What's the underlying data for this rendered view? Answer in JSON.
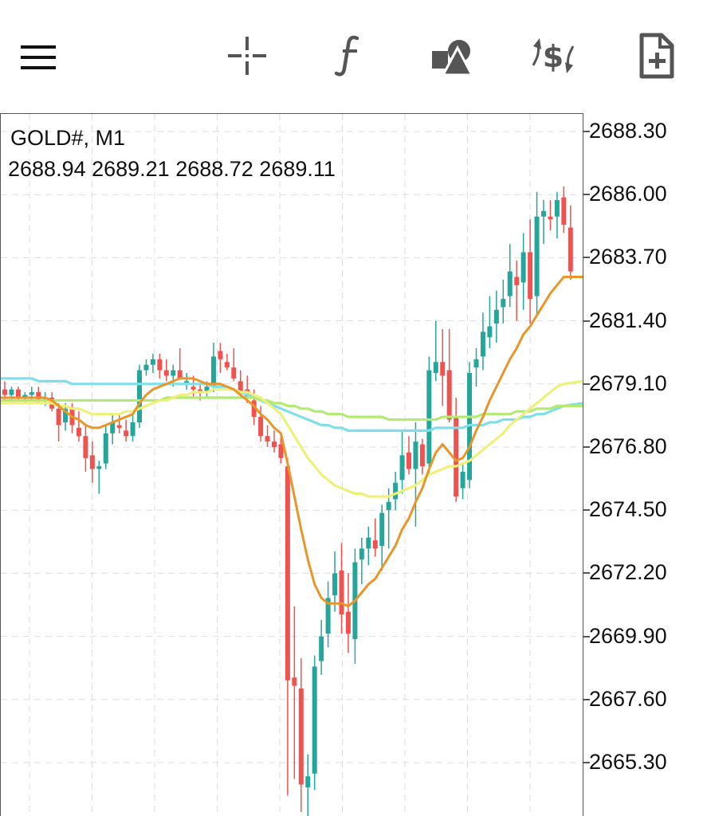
{
  "toolbar": {
    "icons": [
      "menu-icon",
      "crosshair-icon",
      "function-icon",
      "objects-icon",
      "trade-icon",
      "new-order-icon"
    ]
  },
  "chart": {
    "symbol": "GOLD#, M1",
    "ohlc": "2688.94 2689.21 2688.72 2689.11",
    "price_labels": [
      "2688.30",
      "2686.00",
      "2683.70",
      "2681.40",
      "2679.10",
      "2676.80",
      "2674.50",
      "2672.20",
      "2669.90",
      "2667.60",
      "2665.30"
    ],
    "colors": {
      "bull": "#26a69a",
      "bear": "#ef5350",
      "ma_orange": "#e8962a",
      "ma_yellow": "#eef07a",
      "ma_green": "#b4ea74",
      "ma_cyan": "#7fdfe8",
      "grid": "#dddddd"
    }
  },
  "chart_data": {
    "type": "candlestick",
    "symbol": "GOLD#",
    "timeframe": "M1",
    "ylim": [
      2663.0,
      2689.5
    ],
    "grid": true,
    "candles": [
      [
        2678.9,
        2679.2,
        2678.5,
        2678.7
      ],
      [
        2678.7,
        2679.0,
        2678.4,
        2678.9
      ],
      [
        2678.9,
        2679.0,
        2678.5,
        2678.6
      ],
      [
        2678.6,
        2678.8,
        2678.4,
        2678.7
      ],
      [
        2678.7,
        2679.0,
        2678.5,
        2678.8
      ],
      [
        2678.8,
        2679.0,
        2678.4,
        2678.5
      ],
      [
        2678.5,
        2678.8,
        2678.3,
        2678.6
      ],
      [
        2678.6,
        2678.8,
        2678.1,
        2678.2
      ],
      [
        2678.2,
        2678.4,
        2677.0,
        2677.6
      ],
      [
        2677.7,
        2678.4,
        2677.4,
        2678.2
      ],
      [
        2678.2,
        2678.4,
        2677.3,
        2677.6
      ],
      [
        2677.5,
        2678.1,
        2677.0,
        2677.2
      ],
      [
        2677.2,
        2677.6,
        2675.9,
        2676.4
      ],
      [
        2676.5,
        2677.0,
        2675.5,
        2676.0
      ],
      [
        2676.0,
        2676.3,
        2675.1,
        2676.1
      ],
      [
        2676.2,
        2677.6,
        2676.0,
        2677.3
      ],
      [
        2677.3,
        2678.0,
        2676.9,
        2677.7
      ],
      [
        2677.6,
        2678.0,
        2677.3,
        2677.5
      ],
      [
        2677.4,
        2677.8,
        2677.0,
        2677.2
      ],
      [
        2677.2,
        2678.0,
        2677.0,
        2677.7
      ],
      [
        2677.7,
        2679.8,
        2677.5,
        2679.6
      ],
      [
        2679.6,
        2680.0,
        2679.4,
        2679.8
      ],
      [
        2679.8,
        2680.2,
        2679.5,
        2680.0
      ],
      [
        2680.0,
        2680.2,
        2679.3,
        2679.6
      ],
      [
        2679.6,
        2680.0,
        2679.2,
        2679.4
      ],
      [
        2679.4,
        2679.8,
        2679.0,
        2679.6
      ],
      [
        2679.6,
        2680.4,
        2679.3,
        2679.3
      ],
      [
        2679.2,
        2679.5,
        2678.9,
        2679.2
      ],
      [
        2679.0,
        2679.4,
        2678.6,
        2678.9
      ],
      [
        2678.9,
        2679.1,
        2678.5,
        2678.8
      ],
      [
        2678.8,
        2679.2,
        2678.6,
        2679.0
      ],
      [
        2679.0,
        2680.6,
        2678.8,
        2680.1
      ],
      [
        2680.3,
        2680.6,
        2679.5,
        2680.0
      ],
      [
        2679.9,
        2680.2,
        2679.6,
        2679.7
      ],
      [
        2679.7,
        2680.4,
        2679.2,
        2679.3
      ],
      [
        2679.2,
        2679.6,
        2678.6,
        2678.8
      ],
      [
        2678.9,
        2679.4,
        2678.4,
        2678.6
      ],
      [
        2678.5,
        2678.9,
        2677.6,
        2677.9
      ],
      [
        2677.9,
        2678.3,
        2677.0,
        2677.2
      ],
      [
        2677.2,
        2677.6,
        2676.8,
        2677.0
      ],
      [
        2677.0,
        2677.4,
        2676.6,
        2676.8
      ],
      [
        2676.9,
        2677.3,
        2676.2,
        2676.4
      ],
      [
        2676.1,
        2676.4,
        2664.1,
        2668.3
      ],
      [
        2668.4,
        2671.0,
        2664.7,
        2668.1
      ],
      [
        2668.0,
        2669.1,
        2663.5,
        2664.5
      ],
      [
        2664.4,
        2665.6,
        2663.3,
        2664.8
      ],
      [
        2664.9,
        2669.2,
        2664.3,
        2668.8
      ],
      [
        2669.0,
        2670.5,
        2668.5,
        2669.9
      ],
      [
        2670.0,
        2671.9,
        2669.5,
        2671.3
      ],
      [
        2671.4,
        2673.0,
        2670.8,
        2672.2
      ],
      [
        2672.3,
        2673.3,
        2670.0,
        2670.7
      ],
      [
        2670.8,
        2672.2,
        2669.3,
        2670.0
      ],
      [
        2669.8,
        2673.1,
        2668.9,
        2672.6
      ],
      [
        2672.7,
        2673.5,
        2671.8,
        2673.1
      ],
      [
        2673.1,
        2673.9,
        2672.5,
        2673.5
      ],
      [
        2673.4,
        2674.2,
        2672.8,
        2673.1
      ],
      [
        2673.2,
        2674.7,
        2672.3,
        2674.4
      ],
      [
        2674.5,
        2675.3,
        2673.1,
        2674.8
      ],
      [
        2674.9,
        2675.9,
        2674.5,
        2675.5
      ],
      [
        2675.6,
        2677.4,
        2675.1,
        2676.5
      ],
      [
        2676.6,
        2677.2,
        2675.8,
        2676.0
      ],
      [
        2676.0,
        2677.7,
        2673.9,
        2677.0
      ],
      [
        2676.9,
        2677.1,
        2675.8,
        2676.1
      ],
      [
        2676.2,
        2680.1,
        2675.8,
        2679.6
      ],
      [
        2679.5,
        2681.4,
        2679.2,
        2679.9
      ],
      [
        2679.9,
        2681.1,
        2678.3,
        2679.4
      ],
      [
        2679.6,
        2681.1,
        2677.7,
        2677.8
      ],
      [
        2677.9,
        2678.6,
        2674.8,
        2675.0
      ],
      [
        2675.3,
        2676.2,
        2674.9,
        2675.9
      ],
      [
        2675.6,
        2679.9,
        2675.3,
        2679.5
      ],
      [
        2679.7,
        2680.4,
        2679.0,
        2680.0
      ],
      [
        2680.1,
        2681.7,
        2679.6,
        2681.0
      ],
      [
        2680.8,
        2682.3,
        2680.4,
        2681.2
      ],
      [
        2681.3,
        2682.5,
        2680.6,
        2681.8
      ],
      [
        2681.9,
        2682.9,
        2681.3,
        2682.2
      ],
      [
        2682.3,
        2684.2,
        2681.9,
        2683.2
      ],
      [
        2683.0,
        2683.6,
        2681.4,
        2682.7
      ],
      [
        2682.8,
        2684.6,
        2681.8,
        2683.9
      ],
      [
        2683.9,
        2685.1,
        2681.3,
        2682.2
      ],
      [
        2682.3,
        2686.1,
        2681.6,
        2685.2
      ],
      [
        2685.2,
        2685.8,
        2684.2,
        2685.4
      ],
      [
        2685.2,
        2685.8,
        2684.7,
        2685.1
      ],
      [
        2685.2,
        2686.1,
        2684.4,
        2685.8
      ],
      [
        2685.9,
        2686.3,
        2684.6,
        2684.9
      ],
      [
        2684.8,
        2685.6,
        2682.9,
        2683.2
      ]
    ],
    "moving_averages": [
      {
        "color": "orange",
        "values": [
          2678.6,
          2678.6,
          2678.6,
          2678.6,
          2678.6,
          2678.6,
          2678.6,
          2678.5,
          2678.3,
          2678.1,
          2677.9,
          2677.8,
          2677.6,
          2677.5,
          2677.5,
          2677.6,
          2677.7,
          2677.8,
          2677.9,
          2678.0,
          2678.4,
          2678.7,
          2678.9,
          2679.0,
          2679.1,
          2679.2,
          2679.3,
          2679.3,
          2679.3,
          2679.2,
          2679.1,
          2679.1,
          2679.1,
          2679.0,
          2678.9,
          2678.7,
          2678.5,
          2678.3,
          2678.0,
          2677.8,
          2677.5,
          2677.3,
          2676.2,
          2675.0,
          2673.8,
          2672.7,
          2671.8,
          2671.3,
          2671.1,
          2671.1,
          2671.1,
          2671.0,
          2671.2,
          2671.5,
          2671.8,
          2672.0,
          2672.4,
          2672.8,
          2673.2,
          2673.8,
          2674.2,
          2674.8,
          2675.3,
          2676.0,
          2676.6,
          2676.9,
          2676.6,
          2676.3,
          2676.4,
          2676.8,
          2677.4,
          2677.9,
          2678.5,
          2679.0,
          2679.5,
          2680.0,
          2680.4,
          2680.9,
          2681.2,
          2681.6,
          2682.0,
          2682.4,
          2682.7,
          2683.0,
          2683.0
        ]
      },
      {
        "color": "yellow",
        "values": [
          2678.4,
          2678.4,
          2678.4,
          2678.4,
          2678.4,
          2678.4,
          2678.4,
          2678.4,
          2678.3,
          2678.3,
          2678.2,
          2678.2,
          2678.1,
          2678.0,
          2678.0,
          2678.0,
          2678.0,
          2678.0,
          2678.1,
          2678.1,
          2678.2,
          2678.3,
          2678.4,
          2678.5,
          2678.5,
          2678.6,
          2678.7,
          2678.7,
          2678.8,
          2678.8,
          2678.8,
          2678.9,
          2678.9,
          2678.9,
          2678.9,
          2678.8,
          2678.8,
          2678.7,
          2678.6,
          2678.4,
          2678.2,
          2678.0,
          2677.6,
          2677.2,
          2676.8,
          2676.4,
          2676.1,
          2675.8,
          2675.6,
          2675.4,
          2675.3,
          2675.2,
          2675.1,
          2675.1,
          2675.0,
          2675.0,
          2675.0,
          2675.0,
          2675.1,
          2675.2,
          2675.3,
          2675.4,
          2675.6,
          2675.8,
          2675.9,
          2676.0,
          2676.1,
          2676.1,
          2676.2,
          2676.3,
          2676.5,
          2676.7,
          2676.9,
          2677.1,
          2677.3,
          2677.6,
          2677.8,
          2678.0,
          2678.2,
          2678.4,
          2678.6,
          2678.8,
          2679.0,
          2679.1,
          2679.2
        ]
      },
      {
        "color": "green",
        "values": [
          2678.5,
          2678.5,
          2678.5,
          2678.5,
          2678.5,
          2678.5,
          2678.5,
          2678.5,
          2678.5,
          2678.5,
          2678.5,
          2678.5,
          2678.5,
          2678.5,
          2678.5,
          2678.5,
          2678.5,
          2678.5,
          2678.5,
          2678.5,
          2678.5,
          2678.5,
          2678.5,
          2678.5,
          2678.6,
          2678.6,
          2678.6,
          2678.6,
          2678.6,
          2678.6,
          2678.6,
          2678.6,
          2678.6,
          2678.6,
          2678.6,
          2678.6,
          2678.6,
          2678.6,
          2678.5,
          2678.5,
          2678.4,
          2678.4,
          2678.3,
          2678.3,
          2678.2,
          2678.2,
          2678.1,
          2678.1,
          2678.0,
          2678.0,
          2678.0,
          2677.9,
          2677.9,
          2677.9,
          2677.9,
          2677.9,
          2677.9,
          2677.8,
          2677.8,
          2677.8,
          2677.8,
          2677.8,
          2677.8,
          2677.8,
          2677.8,
          2677.9,
          2677.9,
          2677.9,
          2677.9,
          2677.9,
          2677.9,
          2678.0,
          2678.0,
          2678.0,
          2678.0,
          2678.0,
          2678.1,
          2678.1,
          2678.1,
          2678.2,
          2678.2,
          2678.2,
          2678.3,
          2678.3,
          2678.3
        ]
      },
      {
        "color": "cyan",
        "values": [
          2679.3,
          2679.3,
          2679.3,
          2679.3,
          2679.3,
          2679.2,
          2679.2,
          2679.2,
          2679.2,
          2679.2,
          2679.1,
          2679.1,
          2679.1,
          2679.1,
          2679.1,
          2679.1,
          2679.1,
          2679.1,
          2679.1,
          2679.1,
          2679.1,
          2679.1,
          2679.1,
          2679.1,
          2679.1,
          2679.1,
          2679.1,
          2679.1,
          2679.1,
          2679.1,
          2679.1,
          2679.0,
          2679.0,
          2679.0,
          2678.9,
          2678.8,
          2678.7,
          2678.6,
          2678.5,
          2678.4,
          2678.3,
          2678.2,
          2678.1,
          2678.0,
          2677.9,
          2677.8,
          2677.7,
          2677.6,
          2677.6,
          2677.5,
          2677.5,
          2677.4,
          2677.4,
          2677.4,
          2677.4,
          2677.4,
          2677.4,
          2677.4,
          2677.4,
          2677.4,
          2677.4,
          2677.4,
          2677.4,
          2677.4,
          2677.5,
          2677.5,
          2677.5,
          2677.5,
          2677.5,
          2677.6,
          2677.6,
          2677.6,
          2677.7,
          2677.7,
          2677.8,
          2677.8,
          2677.8,
          2677.9,
          2677.9,
          2678.0,
          2678.0,
          2678.1,
          2678.2,
          2678.3,
          2678.4
        ]
      }
    ]
  }
}
